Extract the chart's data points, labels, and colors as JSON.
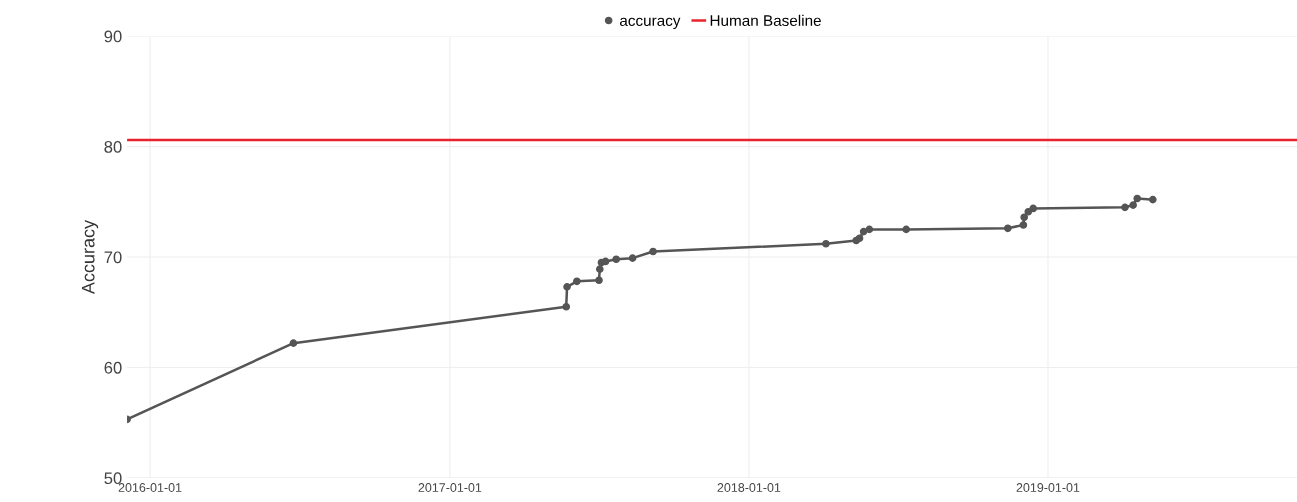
{
  "chart_data": {
    "type": "line",
    "ylabel": "Accuracy",
    "x": [
      "2015-12-04",
      "2016-06-24",
      "2017-05-23",
      "2017-05-24",
      "2017-06-05",
      "2017-07-02",
      "2017-07-03",
      "2017-07-05",
      "2017-07-10",
      "2017-07-23",
      "2017-08-12",
      "2017-09-06",
      "2018-04-05",
      "2018-05-12",
      "2018-05-16",
      "2018-05-21",
      "2018-05-28",
      "2018-07-12",
      "2018-11-13",
      "2018-12-02",
      "2018-12-03",
      "2018-12-08",
      "2018-12-14",
      "2019-04-05",
      "2019-04-15",
      "2019-04-20",
      "2019-05-09"
    ],
    "series": [
      {
        "name": "accuracy",
        "color": "#555555",
        "values": [
          55.3,
          62.2,
          65.5,
          67.3,
          67.8,
          67.9,
          68.9,
          69.5,
          69.6,
          69.8,
          69.9,
          70.5,
          71.2,
          71.5,
          71.7,
          72.3,
          72.5,
          72.5,
          72.6,
          72.9,
          73.6,
          74.1,
          74.4,
          74.5,
          74.7,
          75.3,
          75.2
        ]
      }
    ],
    "ref_lines": [
      {
        "axis": "y",
        "value": 80.6,
        "label": "Human Baseline",
        "color": "#e8232b",
        "line_style": "solid"
      }
    ],
    "xlim": [
      "2015-12-04",
      "2019-11-01"
    ],
    "xticks": [
      {
        "value": "2016-01-01",
        "label": "2016-01-01"
      },
      {
        "value": "2017-01-01",
        "label": "2017-01-01"
      },
      {
        "value": "2018-01-01",
        "label": "2018-01-01"
      },
      {
        "value": "2019-01-01",
        "label": "2019-01-01"
      }
    ],
    "ylim": [
      50,
      90
    ],
    "yticks": [
      50,
      60,
      70,
      80,
      90
    ],
    "grid": true,
    "legend": "top",
    "marker": "circle",
    "line_style": "solid"
  }
}
